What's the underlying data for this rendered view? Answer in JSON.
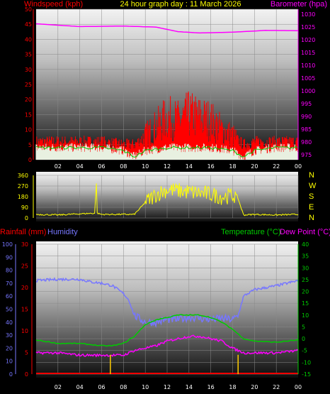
{
  "header": {
    "left": "Windspeed (kph)",
    "center": "24 hour graph day : 11 March 2026",
    "right": "Barometer (hpa)"
  },
  "lower_labels": {
    "rainfall": "Rainfall (mm)",
    "humidity": "Humidity",
    "temperature": "Temperature (°C)",
    "dewpoint": "Dew Point (°C)"
  },
  "colors": {
    "wind_gust": "#ff0000",
    "wind_avg_white": "#e8f0e0",
    "wind_green": "#00cc00",
    "barometer": "#ff00ff",
    "direction": "#ffff00",
    "humidity": "#7777ff",
    "temperature": "#00cc00",
    "dewpoint": "#ff00ff",
    "rain": "#ff0000",
    "rain_rate": "#ffcc00"
  },
  "chart_data": [
    {
      "type": "line",
      "name": "wind_barometer",
      "x_ticks": [
        "02",
        "04",
        "06",
        "08",
        "10",
        "12",
        "14",
        "16",
        "18",
        "20",
        "22",
        "00"
      ],
      "left_axis": {
        "label": "Windspeed (kph)",
        "ticks": [
          0,
          5,
          10,
          15,
          20,
          25,
          30,
          35,
          40,
          45,
          50
        ],
        "ylim": [
          0,
          50
        ]
      },
      "right_axis": {
        "label": "Barometer (hpa)",
        "ticks": [
          975,
          980,
          985,
          990,
          995,
          1000,
          1005,
          1010,
          1015,
          1020,
          1025,
          1030
        ],
        "ylim": [
          973,
          1032
        ]
      },
      "series": [
        {
          "name": "Barometer",
          "color": "#ff00ff",
          "hours": [
            0,
            4,
            8,
            11,
            13,
            15,
            18,
            21,
            24
          ],
          "values": [
            1026.3,
            1025.2,
            1025.4,
            1025.0,
            1023.2,
            1022.7,
            1023.0,
            1023.7,
            1023.6
          ]
        },
        {
          "name": "Gust",
          "color": "#ff0000",
          "hours": [
            0,
            2,
            4,
            6,
            8,
            9,
            10,
            11,
            12,
            13,
            14,
            15,
            16,
            17,
            18,
            19,
            20,
            22,
            24
          ],
          "values": [
            6,
            6,
            6,
            6,
            5,
            5,
            8,
            11,
            14,
            13,
            15,
            14,
            13,
            10,
            8,
            5,
            6,
            6,
            6
          ]
        },
        {
          "name": "Average",
          "color": "#e8f0e0",
          "hours": [
            0,
            2,
            4,
            6,
            8,
            9,
            10,
            12,
            14,
            16,
            18,
            19,
            20,
            22,
            24
          ],
          "values": [
            4,
            4,
            4,
            4,
            3,
            1,
            3,
            4,
            4,
            4,
            3,
            1,
            3,
            4,
            4
          ]
        }
      ]
    },
    {
      "type": "line",
      "name": "wind_direction",
      "left_ticks": [
        0,
        90,
        180,
        270,
        360
      ],
      "right_ticks": [
        "N",
        "W",
        "S",
        "E",
        "N"
      ],
      "series": [
        {
          "name": "Direction",
          "color": "#ffff00",
          "hours": [
            0,
            2,
            4,
            5.4,
            5.5,
            5.6,
            6,
            7,
            8,
            9,
            10,
            11,
            12,
            13,
            14,
            15,
            16,
            17,
            18,
            18.4,
            19,
            20,
            22,
            24
          ],
          "values": [
            30,
            25,
            35,
            40,
            360,
            40,
            30,
            30,
            30,
            30,
            130,
            200,
            240,
            230,
            220,
            210,
            200,
            180,
            190,
            190,
            25,
            30,
            25,
            30
          ]
        }
      ]
    },
    {
      "type": "line",
      "name": "temperature_humidity_rain",
      "x_ticks": [
        "02",
        "04",
        "06",
        "08",
        "10",
        "12",
        "14",
        "16",
        "18",
        "20",
        "22",
        "00"
      ],
      "humidity_axis": {
        "label": "Humidity",
        "ticks": [
          0,
          10,
          20,
          30,
          40,
          50,
          60,
          70,
          80,
          90,
          100
        ],
        "ylim": [
          0,
          100
        ]
      },
      "rain_axis": {
        "label": "Rainfall (mm)",
        "ticks": [
          0,
          5,
          10,
          15,
          20,
          25,
          30
        ],
        "ylim": [
          0,
          30
        ]
      },
      "temperature_axis": {
        "label": "Temperature (°C)",
        "ticks": [
          -15,
          -10,
          -5,
          0,
          5,
          10,
          15,
          20,
          25,
          30,
          35,
          40
        ],
        "ylim": [
          -15,
          40
        ]
      },
      "series": [
        {
          "name": "Humidity",
          "color": "#7777ff",
          "hours": [
            0,
            2,
            4,
            5,
            6,
            7,
            8,
            8.5,
            9,
            10,
            11,
            12,
            13,
            14,
            15,
            16,
            17,
            18,
            18.5,
            19,
            20,
            22,
            24
          ],
          "values": [
            72,
            73,
            73,
            71,
            70,
            68,
            62,
            57,
            45,
            40,
            40,
            42,
            42,
            44,
            43,
            42,
            43,
            42,
            45,
            60,
            65,
            68,
            72
          ]
        },
        {
          "name": "Temperature",
          "color": "#00cc00",
          "hours": [
            0,
            2,
            4,
            6,
            7,
            8,
            9,
            10,
            11,
            12,
            13,
            14,
            15,
            16,
            17,
            18,
            19,
            20,
            22,
            24
          ],
          "values": [
            -0.5,
            -2,
            -2,
            -3,
            -3,
            -2,
            1,
            6,
            8,
            9,
            10,
            10,
            10,
            9,
            7,
            4,
            0,
            -1,
            -1.5,
            -0.5
          ]
        },
        {
          "name": "Dew Point",
          "color": "#ff00ff",
          "hours": [
            0,
            2,
            4,
            6,
            7,
            8,
            9,
            10,
            11,
            12,
            13,
            14,
            15,
            16,
            17,
            18,
            19,
            20,
            22,
            24
          ],
          "values": [
            -6,
            -6,
            -7,
            -7,
            -7,
            -7,
            -5,
            -4,
            -3,
            -1,
            0,
            1,
            1,
            0,
            -1,
            -4,
            -6,
            -6,
            -6,
            -5
          ]
        },
        {
          "name": "Rainfall",
          "color": "#ff0000",
          "hours": [
            0,
            24
          ],
          "values": [
            0,
            0
          ]
        },
        {
          "name": "Rain rate",
          "color": "#ffcc00",
          "hours": [
            6.8,
            18.5
          ],
          "values": [
            2.5,
            2.5
          ]
        }
      ]
    }
  ]
}
